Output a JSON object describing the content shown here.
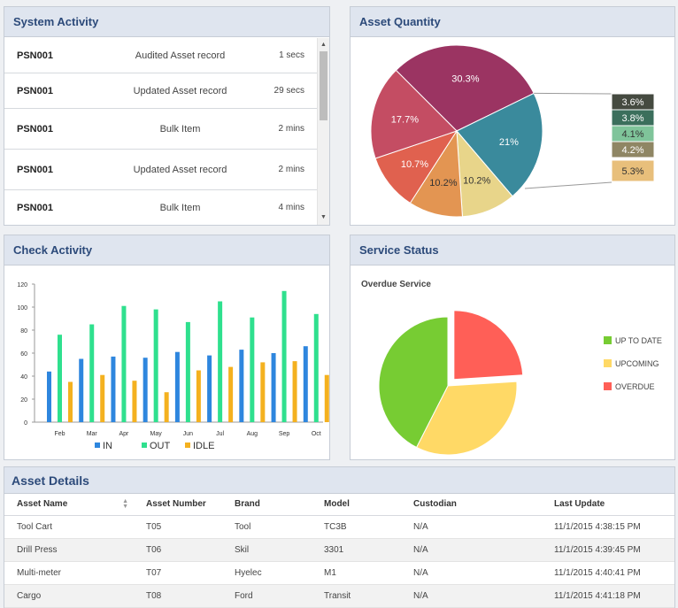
{
  "system_activity": {
    "title": "System Activity",
    "rows": [
      {
        "user": "PSN001",
        "action": "Audited Asset record",
        "time": "1 secs"
      },
      {
        "user": "PSN001",
        "action": "Updated Asset record",
        "time": "29 secs"
      },
      {
        "user": "PSN001",
        "action": "Bulk Item",
        "time": "2 mins"
      },
      {
        "user": "PSN001",
        "action": "Updated Asset record",
        "time": "2 mins"
      },
      {
        "user": "PSN001",
        "action": "Bulk Item",
        "time": "4 mins"
      }
    ]
  },
  "asset_quantity": {
    "title": "Asset Quantity",
    "chart_data": {
      "type": "pie",
      "slices": [
        {
          "label": "30.3%",
          "value": 30.3,
          "color": "#9b3462"
        },
        {
          "label": "21%",
          "value": 21,
          "color": "#3a8a9c"
        },
        {
          "label": "10.2%",
          "value": 10.2,
          "color": "#e8d58a"
        },
        {
          "label": "10.2%",
          "value": 10.2,
          "color": "#e39552"
        },
        {
          "label": "10.7%",
          "value": 10.7,
          "color": "#e0614f"
        },
        {
          "label": "17.7%",
          "value": 17.7,
          "color": "#c44d63"
        }
      ],
      "breakdown": [
        {
          "label": "3.6%",
          "color": "#454a40"
        },
        {
          "label": "3.8%",
          "color": "#3b6f5c"
        },
        {
          "label": "4.1%",
          "color": "#7fc49a"
        },
        {
          "label": "4.2%",
          "color": "#8f8664"
        },
        {
          "label": "5.3%",
          "color": "#e8bf7b"
        }
      ]
    }
  },
  "check_activity": {
    "title": "Check Activity",
    "chart_data": {
      "type": "bar",
      "categories": [
        "Feb",
        "Mar",
        "Apr",
        "May",
        "Jun",
        "Jul",
        "Aug",
        "Sep",
        "Oct"
      ],
      "ylim": [
        0,
        120
      ],
      "yticks": [
        "0",
        "20",
        "40",
        "60",
        "80",
        "100",
        "120"
      ],
      "series": [
        {
          "name": "IN",
          "color": "#2e86de",
          "values": [
            44,
            55,
            57,
            56,
            61,
            58,
            63,
            60,
            66
          ]
        },
        {
          "name": "OUT",
          "color": "#2fe08e",
          "values": [
            76,
            85,
            101,
            98,
            87,
            105,
            91,
            114,
            94
          ]
        },
        {
          "name": "IDLE",
          "color": "#f4b11f",
          "values": [
            35,
            41,
            36,
            26,
            45,
            48,
            52,
            53,
            41
          ]
        }
      ]
    }
  },
  "service_status": {
    "title": "Service Status",
    "chart_data": {
      "type": "pie",
      "title": "Overdue Service",
      "slices": [
        {
          "name": "UP TO DATE",
          "value": 42.5,
          "color": "#77cc33"
        },
        {
          "name": "UPCOMING",
          "value": 33.5,
          "color": "#ffd966"
        },
        {
          "name": "OVERDUE",
          "value": 24,
          "color": "#ff5f57"
        }
      ]
    }
  },
  "asset_details": {
    "title": "Asset Details",
    "columns": [
      "Asset Name",
      "Asset Number",
      "Brand",
      "Model",
      "Custodian",
      "Last Update"
    ],
    "rows": [
      [
        "Tool Cart",
        "T05",
        "Tool",
        "TC3B",
        "N/A",
        "11/1/2015 4:38:15 PM"
      ],
      [
        "Drill Press",
        "T06",
        "Skil",
        "3301",
        "N/A",
        "11/1/2015 4:39:45 PM"
      ],
      [
        "Multi-meter",
        "T07",
        "Hyelec",
        "M1",
        "N/A",
        "11/1/2015 4:40:41 PM"
      ],
      [
        "Cargo",
        "T08",
        "Ford",
        "Transit",
        "N/A",
        "11/1/2015 4:41:18 PM"
      ]
    ]
  }
}
